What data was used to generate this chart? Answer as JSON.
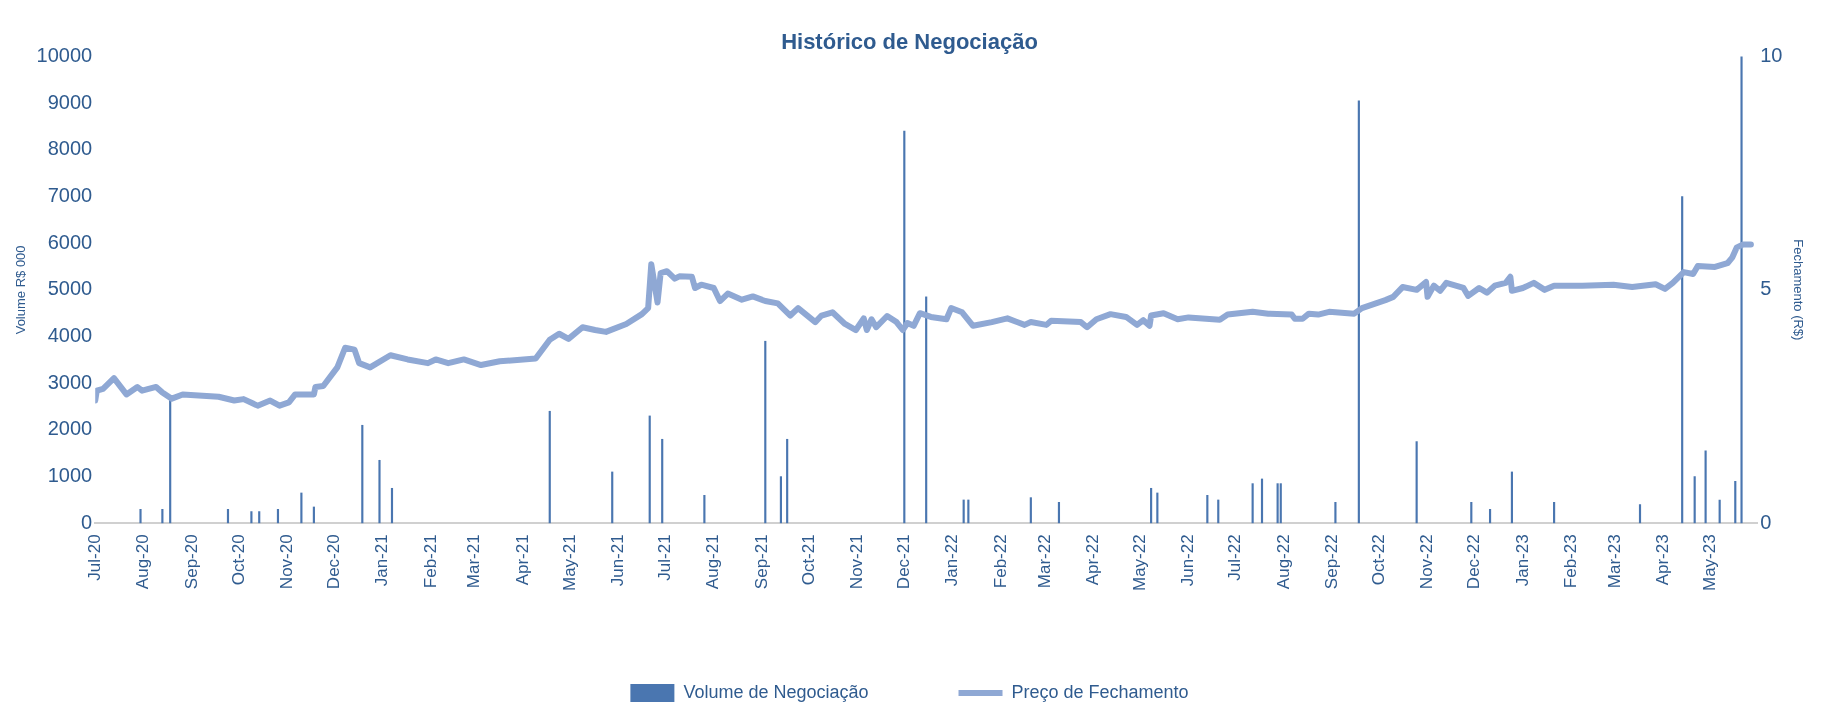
{
  "chart_data": {
    "type": "bar",
    "title": "Histórico de Negociação",
    "ylabel": "Volume R$ 000",
    "y2label": "Fechamento (R$)",
    "xlim": [
      "2020-07-01",
      "2023-05-31"
    ],
    "xticks": [
      {
        "value": "2020-07-01",
        "label": "Jul-20"
      },
      {
        "value": "2020-08-01",
        "label": "Aug-20"
      },
      {
        "value": "2020-09-01",
        "label": "Sep-20"
      },
      {
        "value": "2020-10-01",
        "label": "Oct-20"
      },
      {
        "value": "2020-11-01",
        "label": "Nov-20"
      },
      {
        "value": "2020-12-01",
        "label": "Dec-20"
      },
      {
        "value": "2021-01-01",
        "label": "Jan-21"
      },
      {
        "value": "2021-02-01",
        "label": "Feb-21"
      },
      {
        "value": "2021-03-01",
        "label": "Mar-21"
      },
      {
        "value": "2021-04-01",
        "label": "Apr-21"
      },
      {
        "value": "2021-05-01",
        "label": "May-21"
      },
      {
        "value": "2021-06-01",
        "label": "Jun-21"
      },
      {
        "value": "2021-07-01",
        "label": "Jul-21"
      },
      {
        "value": "2021-08-01",
        "label": "Aug-21"
      },
      {
        "value": "2021-09-01",
        "label": "Sep-21"
      },
      {
        "value": "2021-10-01",
        "label": "Oct-21"
      },
      {
        "value": "2021-11-01",
        "label": "Nov-21"
      },
      {
        "value": "2021-12-01",
        "label": "Dec-21"
      },
      {
        "value": "2022-01-01",
        "label": "Jan-22"
      },
      {
        "value": "2022-02-01",
        "label": "Feb-22"
      },
      {
        "value": "2022-03-01",
        "label": "Mar-22"
      },
      {
        "value": "2022-04-01",
        "label": "Apr-22"
      },
      {
        "value": "2022-05-01",
        "label": "May-22"
      },
      {
        "value": "2022-06-01",
        "label": "Jun-22"
      },
      {
        "value": "2022-07-01",
        "label": "Jul-22"
      },
      {
        "value": "2022-08-01",
        "label": "Aug-22"
      },
      {
        "value": "2022-09-01",
        "label": "Sep-22"
      },
      {
        "value": "2022-10-01",
        "label": "Oct-22"
      },
      {
        "value": "2022-11-01",
        "label": "Nov-22"
      },
      {
        "value": "2022-12-01",
        "label": "Dec-22"
      },
      {
        "value": "2023-01-01",
        "label": "Jan-23"
      },
      {
        "value": "2023-02-01",
        "label": "Feb-23"
      },
      {
        "value": "2023-03-01",
        "label": "Mar-23"
      },
      {
        "value": "2023-04-01",
        "label": "Apr-23"
      },
      {
        "value": "2023-05-01",
        "label": "May-23"
      }
    ],
    "ylim": [
      0,
      10000
    ],
    "yticks": [
      0,
      1000,
      2000,
      3000,
      4000,
      5000,
      6000,
      7000,
      8000,
      9000,
      10000
    ],
    "y2lim": [
      0,
      10
    ],
    "y2ticks": [
      0,
      5,
      10
    ],
    "grid": false,
    "legend": "bottom",
    "marker": "none",
    "line_style": "solid",
    "series": [
      {
        "name": "Volume de Negociação",
        "color": "#4a76b0",
        "x": [
          "2020-07-30",
          "2020-08-13",
          "2020-08-18",
          "2020-09-24",
          "2020-10-09",
          "2020-10-14",
          "2020-10-26",
          "2020-11-10",
          "2020-11-18",
          "2020-12-19",
          "2020-12-30",
          "2021-01-07",
          "2021-04-18",
          "2021-05-28",
          "2021-06-21",
          "2021-06-29",
          "2021-07-26",
          "2021-09-03",
          "2021-09-13",
          "2021-09-17",
          "2021-12-01",
          "2021-12-15",
          "2022-01-08",
          "2022-01-11",
          "2022-02-20",
          "2022-03-10",
          "2022-05-08",
          "2022-05-12",
          "2022-06-13",
          "2022-06-20",
          "2022-07-12",
          "2022-07-18",
          "2022-07-28",
          "2022-07-30",
          "2022-09-03",
          "2022-09-18",
          "2022-10-25",
          "2022-11-29",
          "2022-12-11",
          "2022-12-25",
          "2023-01-21",
          "2023-03-17",
          "2023-04-13",
          "2023-04-21",
          "2023-04-28",
          "2023-05-07",
          "2023-05-17",
          "2023-05-21"
        ],
        "values": [
          300,
          300,
          2650,
          300,
          250,
          250,
          300,
          650,
          350,
          2100,
          1350,
          750,
          2400,
          1100,
          2300,
          1800,
          600,
          3900,
          1000,
          1800,
          8400,
          4850,
          500,
          500,
          550,
          450,
          750,
          650,
          600,
          500,
          850,
          950,
          850,
          850,
          450,
          9050,
          1750,
          450,
          300,
          1100,
          450,
          400,
          7000,
          1000,
          1550,
          500,
          900,
          10000
        ]
      },
      {
        "name": "Preço de Fechamento",
        "type": "line",
        "axis": "y2",
        "color": "#8fa8d4",
        "x": [
          "2020-07-01",
          "2020-07-02",
          "2020-07-06",
          "2020-07-13",
          "2020-07-21",
          "2020-07-28",
          "2020-07-31",
          "2020-08-09",
          "2020-08-13",
          "2020-08-19",
          "2020-08-26",
          "2020-09-18",
          "2020-09-28",
          "2020-10-04",
          "2020-10-13",
          "2020-10-21",
          "2020-10-27",
          "2020-11-02",
          "2020-11-06",
          "2020-11-18",
          "2020-11-19",
          "2020-11-24",
          "2020-12-03",
          "2020-12-08",
          "2020-12-14",
          "2020-12-17",
          "2020-12-24",
          "2021-01-06",
          "2021-01-17",
          "2021-01-30",
          "2021-02-04",
          "2021-02-12",
          "2021-02-22",
          "2021-03-05",
          "2021-03-17",
          "2021-04-09",
          "2021-04-18",
          "2021-04-24",
          "2021-04-30",
          "2021-05-09",
          "2021-05-17",
          "2021-05-24",
          "2021-06-06",
          "2021-06-16",
          "2021-06-20",
          "2021-06-22",
          "2021-06-26",
          "2021-06-28",
          "2021-07-02",
          "2021-07-07",
          "2021-07-10",
          "2021-07-18",
          "2021-07-20",
          "2021-07-24",
          "2021-08-01",
          "2021-08-05",
          "2021-08-10",
          "2021-08-19",
          "2021-08-26",
          "2021-09-03",
          "2021-09-11",
          "2021-09-19",
          "2021-09-24",
          "2021-10-05",
          "2021-10-09",
          "2021-10-16",
          "2021-10-24",
          "2021-10-31",
          "2021-11-05",
          "2021-11-07",
          "2021-11-10",
          "2021-11-13",
          "2021-11-20",
          "2021-11-26",
          "2021-11-30",
          "2021-12-03",
          "2021-12-07",
          "2021-12-11",
          "2021-12-18",
          "2021-12-28",
          "2021-12-31",
          "2022-01-07",
          "2022-01-14",
          "2022-01-26",
          "2022-02-05",
          "2022-02-16",
          "2022-02-20",
          "2022-03-02",
          "2022-03-05",
          "2022-03-24",
          "2022-03-28",
          "2022-04-03",
          "2022-04-12",
          "2022-04-22",
          "2022-04-29",
          "2022-05-03",
          "2022-05-07",
          "2022-05-08",
          "2022-05-16",
          "2022-05-25",
          "2022-06-01",
          "2022-06-21",
          "2022-06-26",
          "2022-07-12",
          "2022-07-22",
          "2022-08-06",
          "2022-08-08",
          "2022-08-13",
          "2022-08-17",
          "2022-08-23",
          "2022-08-30",
          "2022-09-15",
          "2022-09-20",
          "2022-10-05",
          "2022-10-10",
          "2022-10-16",
          "2022-10-25",
          "2022-10-31",
          "2022-11-01",
          "2022-11-05",
          "2022-11-09",
          "2022-11-13",
          "2022-11-24",
          "2022-11-27",
          "2022-12-04",
          "2022-12-09",
          "2022-12-14",
          "2022-12-21",
          "2022-12-24",
          "2022-12-25",
          "2023-01-01",
          "2023-01-08",
          "2023-01-15",
          "2023-01-21",
          "2023-02-08",
          "2023-02-28",
          "2023-03-12",
          "2023-03-27",
          "2023-04-02",
          "2023-04-07",
          "2023-04-14",
          "2023-04-20",
          "2023-04-23",
          "2023-05-04",
          "2023-05-12",
          "2023-05-15",
          "2023-05-18",
          "2023-05-22",
          "2023-05-27"
        ],
        "values": [
          2.63,
          2.84,
          2.88,
          3.11,
          2.76,
          2.92,
          2.84,
          2.92,
          2.8,
          2.67,
          2.76,
          2.71,
          2.63,
          2.66,
          2.52,
          2.63,
          2.52,
          2.59,
          2.76,
          2.76,
          2.92,
          2.94,
          3.34,
          3.76,
          3.72,
          3.43,
          3.34,
          3.6,
          3.51,
          3.43,
          3.51,
          3.43,
          3.51,
          3.39,
          3.47,
          3.53,
          3.93,
          4.06,
          3.95,
          4.2,
          4.14,
          4.1,
          4.27,
          4.48,
          4.61,
          5.55,
          4.73,
          5.36,
          5.4,
          5.24,
          5.29,
          5.28,
          5.04,
          5.11,
          5.04,
          4.76,
          4.92,
          4.79,
          4.86,
          4.76,
          4.71,
          4.45,
          4.61,
          4.31,
          4.45,
          4.52,
          4.27,
          4.14,
          4.39,
          4.14,
          4.37,
          4.2,
          4.44,
          4.31,
          4.14,
          4.29,
          4.23,
          4.5,
          4.42,
          4.37,
          4.61,
          4.52,
          4.23,
          4.31,
          4.39,
          4.25,
          4.31,
          4.25,
          4.34,
          4.31,
          4.2,
          4.37,
          4.48,
          4.42,
          4.25,
          4.35,
          4.23,
          4.45,
          4.5,
          4.37,
          4.41,
          4.36,
          4.47,
          4.53,
          4.49,
          4.47,
          4.38,
          4.38,
          4.49,
          4.47,
          4.53,
          4.49,
          4.61,
          4.78,
          4.85,
          5.06,
          5.0,
          5.17,
          4.85,
          5.09,
          4.98,
          5.15,
          5.04,
          4.87,
          5.04,
          4.94,
          5.09,
          5.15,
          5.28,
          4.98,
          5.04,
          5.15,
          5.0,
          5.09,
          5.09,
          5.11,
          5.06,
          5.12,
          5.02,
          5.15,
          5.38,
          5.34,
          5.51,
          5.49,
          5.57,
          5.69,
          5.91,
          5.97,
          5.97
        ]
      }
    ]
  }
}
